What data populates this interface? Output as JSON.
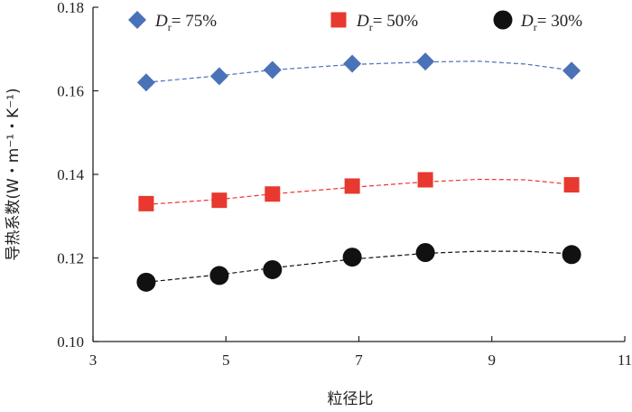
{
  "chart_data": {
    "type": "scatter",
    "xlabel": "粒径比",
    "ylabel": "导热系数(W・m⁻¹・K⁻¹)",
    "xlim": [
      3,
      11
    ],
    "ylim": [
      0.1,
      0.18
    ],
    "xticks": [
      3,
      5,
      7,
      9,
      11
    ],
    "yticks": [
      0.1,
      0.12,
      0.14,
      0.16,
      0.18
    ],
    "grid": false,
    "legend_position": "top",
    "series": [
      {
        "name": "Dr= 75%",
        "legend_symbol": "D",
        "legend_subscript": "r",
        "legend_suffix": "= 75%",
        "marker": "diamond",
        "color": "#4a72b8",
        "x": [
          3.8,
          4.9,
          5.7,
          6.9,
          8.0,
          10.2
        ],
        "y": [
          0.162,
          0.1635,
          0.165,
          0.1665,
          0.167,
          0.1648
        ],
        "trend": [
          0.162,
          0.1636,
          0.165,
          0.1663,
          0.1669,
          0.1671,
          0.1664,
          0.1649
        ]
      },
      {
        "name": "Dr= 50%",
        "legend_symbol": "D",
        "legend_subscript": "r",
        "legend_suffix": "= 50%",
        "marker": "square",
        "color": "#e8382f",
        "x": [
          3.8,
          4.9,
          5.7,
          6.9,
          8.0,
          10.2
        ],
        "y": [
          0.133,
          0.1338,
          0.1353,
          0.1372,
          0.1387,
          0.1375
        ],
        "trend": [
          0.1328,
          0.134,
          0.1353,
          0.1369,
          0.1382,
          0.1388,
          0.1387,
          0.1376
        ]
      },
      {
        "name": "Dr= 30%",
        "legend_symbol": "D",
        "legend_subscript": "r",
        "legend_suffix": "= 30%",
        "marker": "circle",
        "color": "#111111",
        "x": [
          3.8,
          4.9,
          5.7,
          6.9,
          8.0,
          10.2
        ],
        "y": [
          0.1142,
          0.1158,
          0.1172,
          0.1202,
          0.1213,
          0.1208
        ],
        "trend": [
          0.1142,
          0.116,
          0.1176,
          0.1197,
          0.1211,
          0.1216,
          0.1216,
          0.121
        ]
      }
    ],
    "trend_x": [
      3.8,
      4.9,
      5.7,
      6.9,
      8.0,
      8.8,
      9.5,
      10.2
    ]
  }
}
